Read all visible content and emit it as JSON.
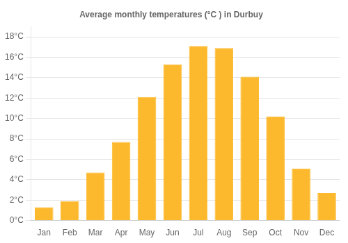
{
  "chart_data": {
    "type": "bar",
    "title": "Average monthly temperatures (°C ) in Durbuy",
    "categories": [
      "Jan",
      "Feb",
      "Mar",
      "Apr",
      "May",
      "Jun",
      "Jul",
      "Aug",
      "Sep",
      "Oct",
      "Nov",
      "Dec"
    ],
    "values": [
      1.3,
      1.9,
      4.7,
      7.7,
      12.1,
      15.3,
      17.1,
      16.9,
      14.1,
      10.2,
      5.1,
      2.7
    ],
    "color": "#FDB92E",
    "ylim": [
      0,
      19
    ],
    "yticks": [
      {
        "value": 0,
        "label": "0°C"
      },
      {
        "value": 2,
        "label": "2°C"
      },
      {
        "value": 4,
        "label": "4°C"
      },
      {
        "value": 6,
        "label": "6°C"
      },
      {
        "value": 8,
        "label": "8°C"
      },
      {
        "value": 10,
        "label": "10°C"
      },
      {
        "value": 12,
        "label": "12°C"
      },
      {
        "value": 14,
        "label": "14°C"
      },
      {
        "value": 16,
        "label": "16°C"
      },
      {
        "value": 18,
        "label": "18°C"
      }
    ],
    "grid": true
  }
}
